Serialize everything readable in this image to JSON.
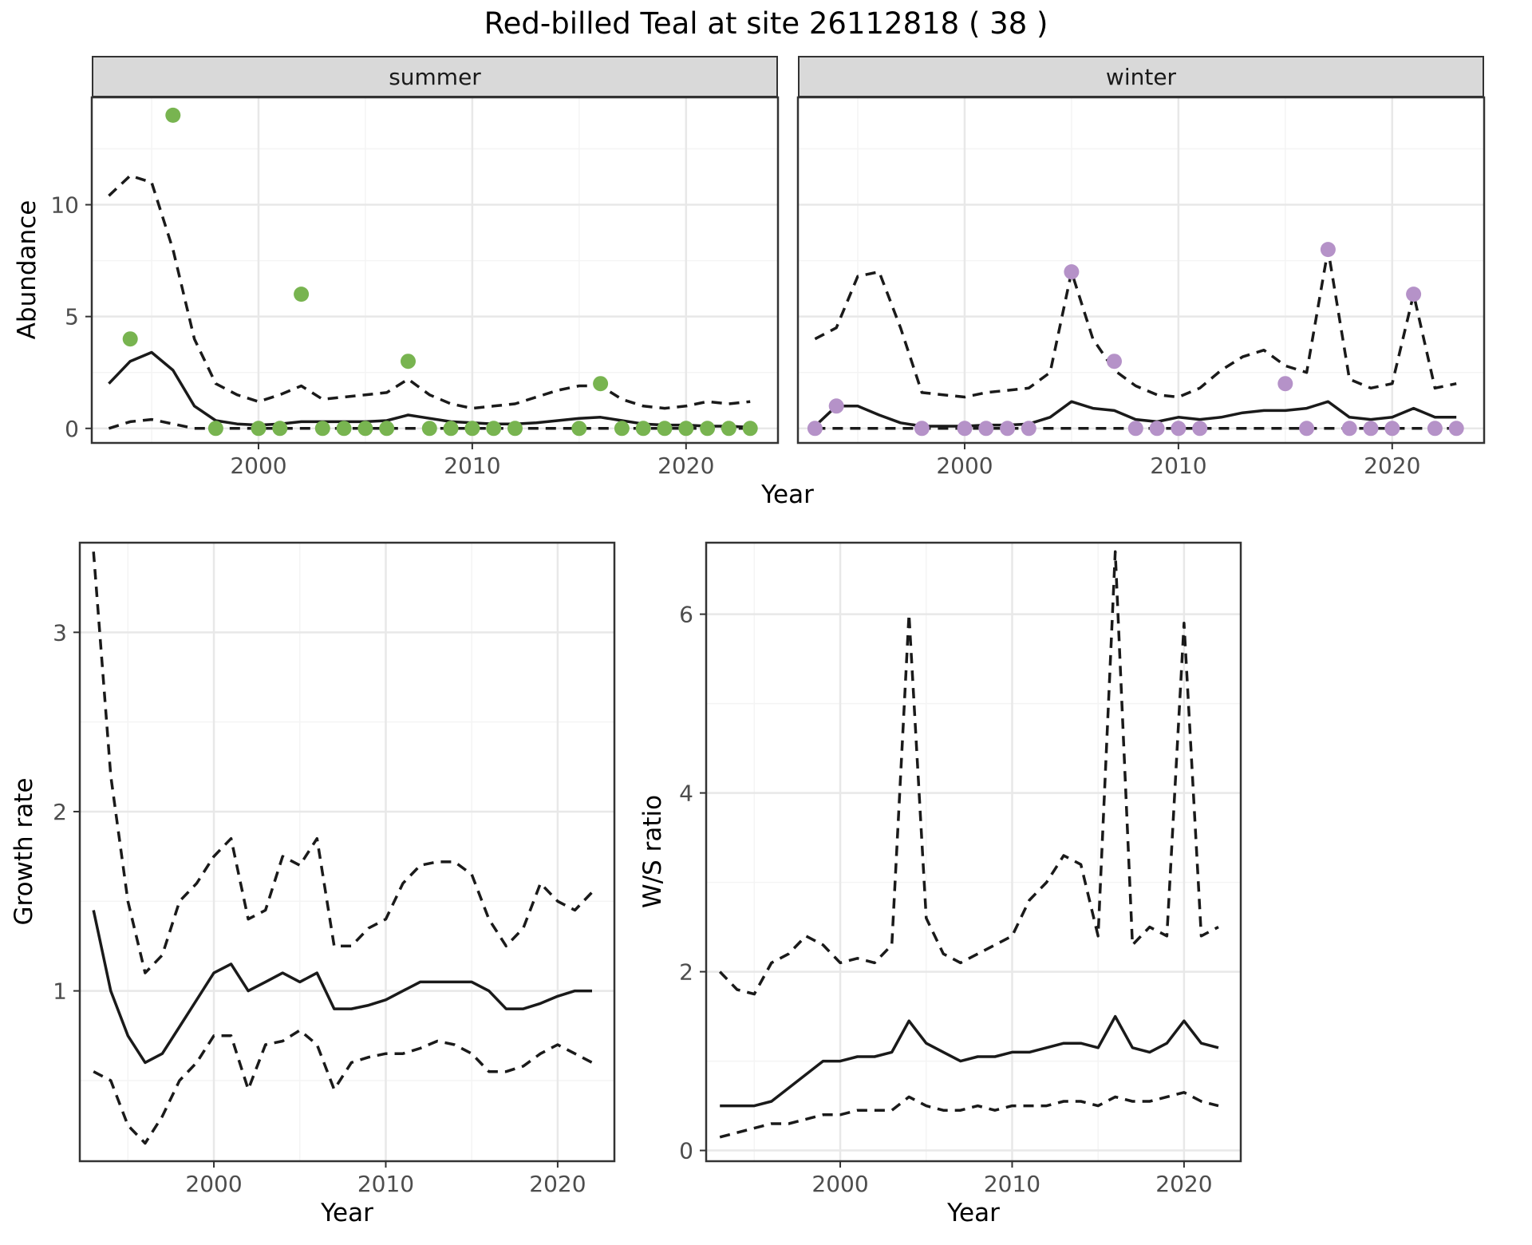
{
  "title": "Red-billed Teal at site 26112818 ( 38 )",
  "labels": {
    "year": "Year",
    "abundance": "Abundance",
    "growth_rate": "Growth rate",
    "ws_ratio": "W/S ratio"
  },
  "facets": {
    "summer": "summer",
    "winter": "winter"
  },
  "colors": {
    "summer_points": "#78b450",
    "winter_points": "#b592c8",
    "line": "#1a1a1a",
    "strip_bg": "#d9d9d9",
    "grid_major": "#e8e8e8",
    "grid_minor": "#f4f4f4",
    "panel_border": "#333333",
    "tick_text": "#4d4d4d"
  },
  "chart_data": [
    {
      "type": "line",
      "facet": "summer",
      "title": "summer",
      "xlabel": "Year",
      "ylabel": "Abundance",
      "xlim": [
        1992.2,
        2024.3
      ],
      "ylim": [
        -0.65,
        14.8
      ],
      "xticks": [
        2000,
        2010,
        2020
      ],
      "yticks": [
        0,
        5,
        10
      ],
      "x": [
        1993,
        1994,
        1995,
        1996,
        1997,
        1998,
        1999,
        2000,
        2001,
        2002,
        2003,
        2004,
        2005,
        2006,
        2007,
        2008,
        2009,
        2010,
        2011,
        2012,
        2013,
        2014,
        2015,
        2016,
        2017,
        2018,
        2019,
        2020,
        2021,
        2022,
        2023
      ],
      "series": [
        {
          "name": "median",
          "style": "solid",
          "values": [
            2.0,
            3.0,
            3.4,
            2.6,
            1.0,
            0.35,
            0.2,
            0.15,
            0.2,
            0.3,
            0.3,
            0.3,
            0.3,
            0.35,
            0.6,
            0.45,
            0.3,
            0.25,
            0.2,
            0.2,
            0.25,
            0.35,
            0.45,
            0.5,
            0.35,
            0.2,
            0.15,
            0.15,
            0.1,
            0.1,
            0.05
          ]
        },
        {
          "name": "upper_95ci",
          "style": "dashed",
          "values": [
            10.4,
            11.3,
            11.0,
            8.0,
            4.0,
            2.0,
            1.5,
            1.2,
            1.5,
            1.9,
            1.3,
            1.4,
            1.5,
            1.6,
            2.2,
            1.5,
            1.1,
            0.9,
            1.0,
            1.1,
            1.4,
            1.7,
            1.9,
            1.9,
            1.3,
            1.0,
            0.9,
            1.0,
            1.2,
            1.1,
            1.2
          ]
        },
        {
          "name": "lower_95ci",
          "style": "dashed",
          "values": [
            0,
            0.3,
            0.4,
            0.2,
            0,
            0,
            0,
            0,
            0,
            0,
            0,
            0,
            0,
            0,
            0,
            0,
            0,
            0,
            0,
            0,
            0,
            0,
            0,
            0,
            0,
            0,
            0,
            0,
            0,
            0,
            0
          ]
        }
      ],
      "points": {
        "name": "observed_counts",
        "color_key": "summer_points",
        "x": [
          1994,
          1996,
          1998,
          2000,
          2001,
          2002,
          2003,
          2004,
          2005,
          2006,
          2007,
          2008,
          2009,
          2010,
          2011,
          2012,
          2015,
          2016,
          2017,
          2018,
          2019,
          2020,
          2021,
          2022,
          2023
        ],
        "y": [
          4,
          14,
          0,
          0,
          0,
          6,
          0,
          0,
          0,
          0,
          3,
          0,
          0,
          0,
          0,
          0,
          0,
          2,
          0,
          0,
          0,
          0,
          0,
          0,
          0
        ]
      }
    },
    {
      "type": "line",
      "facet": "winter",
      "title": "winter",
      "xlabel": "Year",
      "ylabel": "Abundance",
      "xlim": [
        1992.2,
        2024.3
      ],
      "ylim": [
        -0.65,
        14.8
      ],
      "xticks": [
        2000,
        2010,
        2020
      ],
      "yticks": [
        0,
        5,
        10
      ],
      "x": [
        1993,
        1994,
        1995,
        1996,
        1997,
        1998,
        1999,
        2000,
        2001,
        2002,
        2003,
        2004,
        2005,
        2006,
        2007,
        2008,
        2009,
        2010,
        2011,
        2012,
        2013,
        2014,
        2015,
        2016,
        2017,
        2018,
        2019,
        2020,
        2021,
        2022,
        2023
      ],
      "series": [
        {
          "name": "median",
          "style": "solid",
          "values": [
            0.1,
            1.0,
            1.0,
            0.6,
            0.25,
            0.1,
            0.1,
            0.1,
            0.15,
            0.15,
            0.2,
            0.5,
            1.2,
            0.9,
            0.8,
            0.4,
            0.3,
            0.5,
            0.4,
            0.5,
            0.7,
            0.8,
            0.8,
            0.9,
            1.2,
            0.5,
            0.4,
            0.5,
            0.9,
            0.5,
            0.5
          ]
        },
        {
          "name": "upper_95ci",
          "style": "dashed",
          "values": [
            4.0,
            4.5,
            6.8,
            7.0,
            4.5,
            1.6,
            1.5,
            1.4,
            1.6,
            1.7,
            1.8,
            2.5,
            7.0,
            4.0,
            2.6,
            1.9,
            1.5,
            1.4,
            1.8,
            2.6,
            3.2,
            3.5,
            2.8,
            2.5,
            8.0,
            2.2,
            1.8,
            2.0,
            6.0,
            1.8,
            2.0
          ]
        },
        {
          "name": "lower_95ci",
          "style": "dashed",
          "values": [
            0,
            0,
            0,
            0,
            0,
            0,
            0,
            0,
            0,
            0,
            0,
            0,
            0,
            0,
            0,
            0,
            0,
            0,
            0,
            0,
            0,
            0,
            0,
            0,
            0,
            0,
            0,
            0,
            0,
            0,
            0
          ]
        }
      ],
      "points": {
        "name": "observed_counts",
        "color_key": "winter_points",
        "x": [
          1993,
          1994,
          1998,
          2000,
          2001,
          2002,
          2003,
          2005,
          2007,
          2008,
          2009,
          2010,
          2011,
          2015,
          2016,
          2017,
          2018,
          2019,
          2020,
          2021,
          2022,
          2023
        ],
        "y": [
          0,
          1,
          0,
          0,
          0,
          0,
          0,
          7,
          3,
          0,
          0,
          0,
          0,
          2,
          0,
          8,
          0,
          0,
          0,
          6,
          0,
          0
        ]
      }
    },
    {
      "type": "line",
      "title": "Growth rate",
      "xlabel": "Year",
      "ylabel": "Growth rate",
      "xlim": [
        1992.2,
        2023.3
      ],
      "ylim": [
        0.05,
        3.5
      ],
      "xticks": [
        2000,
        2010,
        2020
      ],
      "yticks": [
        1,
        2,
        3
      ],
      "x": [
        1993,
        1994,
        1995,
        1996,
        1997,
        1998,
        1999,
        2000,
        2001,
        2002,
        2003,
        2004,
        2005,
        2006,
        2007,
        2008,
        2009,
        2010,
        2011,
        2012,
        2013,
        2014,
        2015,
        2016,
        2017,
        2018,
        2019,
        2020,
        2021,
        2022
      ],
      "series": [
        {
          "name": "median",
          "style": "solid",
          "values": [
            1.45,
            1.0,
            0.75,
            0.6,
            0.65,
            0.8,
            0.95,
            1.1,
            1.15,
            1.0,
            1.05,
            1.1,
            1.05,
            1.1,
            0.9,
            0.9,
            0.92,
            0.95,
            1.0,
            1.05,
            1.05,
            1.05,
            1.05,
            1.0,
            0.9,
            0.9,
            0.93,
            0.97,
            1.0,
            1.0
          ]
        },
        {
          "name": "upper_95ci",
          "style": "dashed",
          "values": [
            3.45,
            2.2,
            1.5,
            1.1,
            1.2,
            1.5,
            1.6,
            1.75,
            1.85,
            1.4,
            1.45,
            1.75,
            1.7,
            1.85,
            1.25,
            1.25,
            1.35,
            1.4,
            1.6,
            1.7,
            1.72,
            1.72,
            1.65,
            1.4,
            1.25,
            1.35,
            1.6,
            1.5,
            1.45,
            1.55
          ]
        },
        {
          "name": "lower_95ci",
          "style": "dashed",
          "values": [
            0.55,
            0.5,
            0.25,
            0.15,
            0.3,
            0.5,
            0.6,
            0.75,
            0.75,
            0.45,
            0.7,
            0.72,
            0.78,
            0.7,
            0.45,
            0.6,
            0.63,
            0.65,
            0.65,
            0.68,
            0.72,
            0.7,
            0.65,
            0.55,
            0.55,
            0.58,
            0.65,
            0.7,
            0.65,
            0.6
          ]
        }
      ]
    },
    {
      "type": "line",
      "title": "W/S ratio",
      "xlabel": "Year",
      "ylabel": "W/S ratio",
      "xlim": [
        1992.2,
        2023.3
      ],
      "ylim": [
        -0.12,
        6.8
      ],
      "xticks": [
        2000,
        2010,
        2020
      ],
      "yticks": [
        0,
        2,
        4,
        6
      ],
      "x": [
        1993,
        1994,
        1995,
        1996,
        1997,
        1998,
        1999,
        2000,
        2001,
        2002,
        2003,
        2004,
        2005,
        2006,
        2007,
        2008,
        2009,
        2010,
        2011,
        2012,
        2013,
        2014,
        2015,
        2016,
        2017,
        2018,
        2019,
        2020,
        2021,
        2022
      ],
      "series": [
        {
          "name": "median",
          "style": "solid",
          "values": [
            0.5,
            0.5,
            0.5,
            0.55,
            0.7,
            0.85,
            1.0,
            1.0,
            1.05,
            1.05,
            1.1,
            1.45,
            1.2,
            1.1,
            1.0,
            1.05,
            1.05,
            1.1,
            1.1,
            1.15,
            1.2,
            1.2,
            1.15,
            1.5,
            1.15,
            1.1,
            1.2,
            1.45,
            1.2,
            1.15
          ]
        },
        {
          "name": "upper_95ci",
          "style": "dashed",
          "values": [
            2.0,
            1.8,
            1.75,
            2.1,
            2.2,
            2.4,
            2.3,
            2.1,
            2.15,
            2.1,
            2.3,
            6.0,
            2.6,
            2.2,
            2.1,
            2.2,
            2.3,
            2.4,
            2.8,
            3.0,
            3.3,
            3.2,
            2.4,
            6.7,
            2.3,
            2.5,
            2.4,
            5.9,
            2.4,
            2.5
          ]
        },
        {
          "name": "lower_95ci",
          "style": "dashed",
          "values": [
            0.15,
            0.2,
            0.25,
            0.3,
            0.3,
            0.35,
            0.4,
            0.4,
            0.45,
            0.45,
            0.45,
            0.6,
            0.5,
            0.45,
            0.45,
            0.5,
            0.45,
            0.5,
            0.5,
            0.5,
            0.55,
            0.55,
            0.5,
            0.6,
            0.55,
            0.55,
            0.6,
            0.65,
            0.55,
            0.5
          ]
        }
      ]
    }
  ]
}
